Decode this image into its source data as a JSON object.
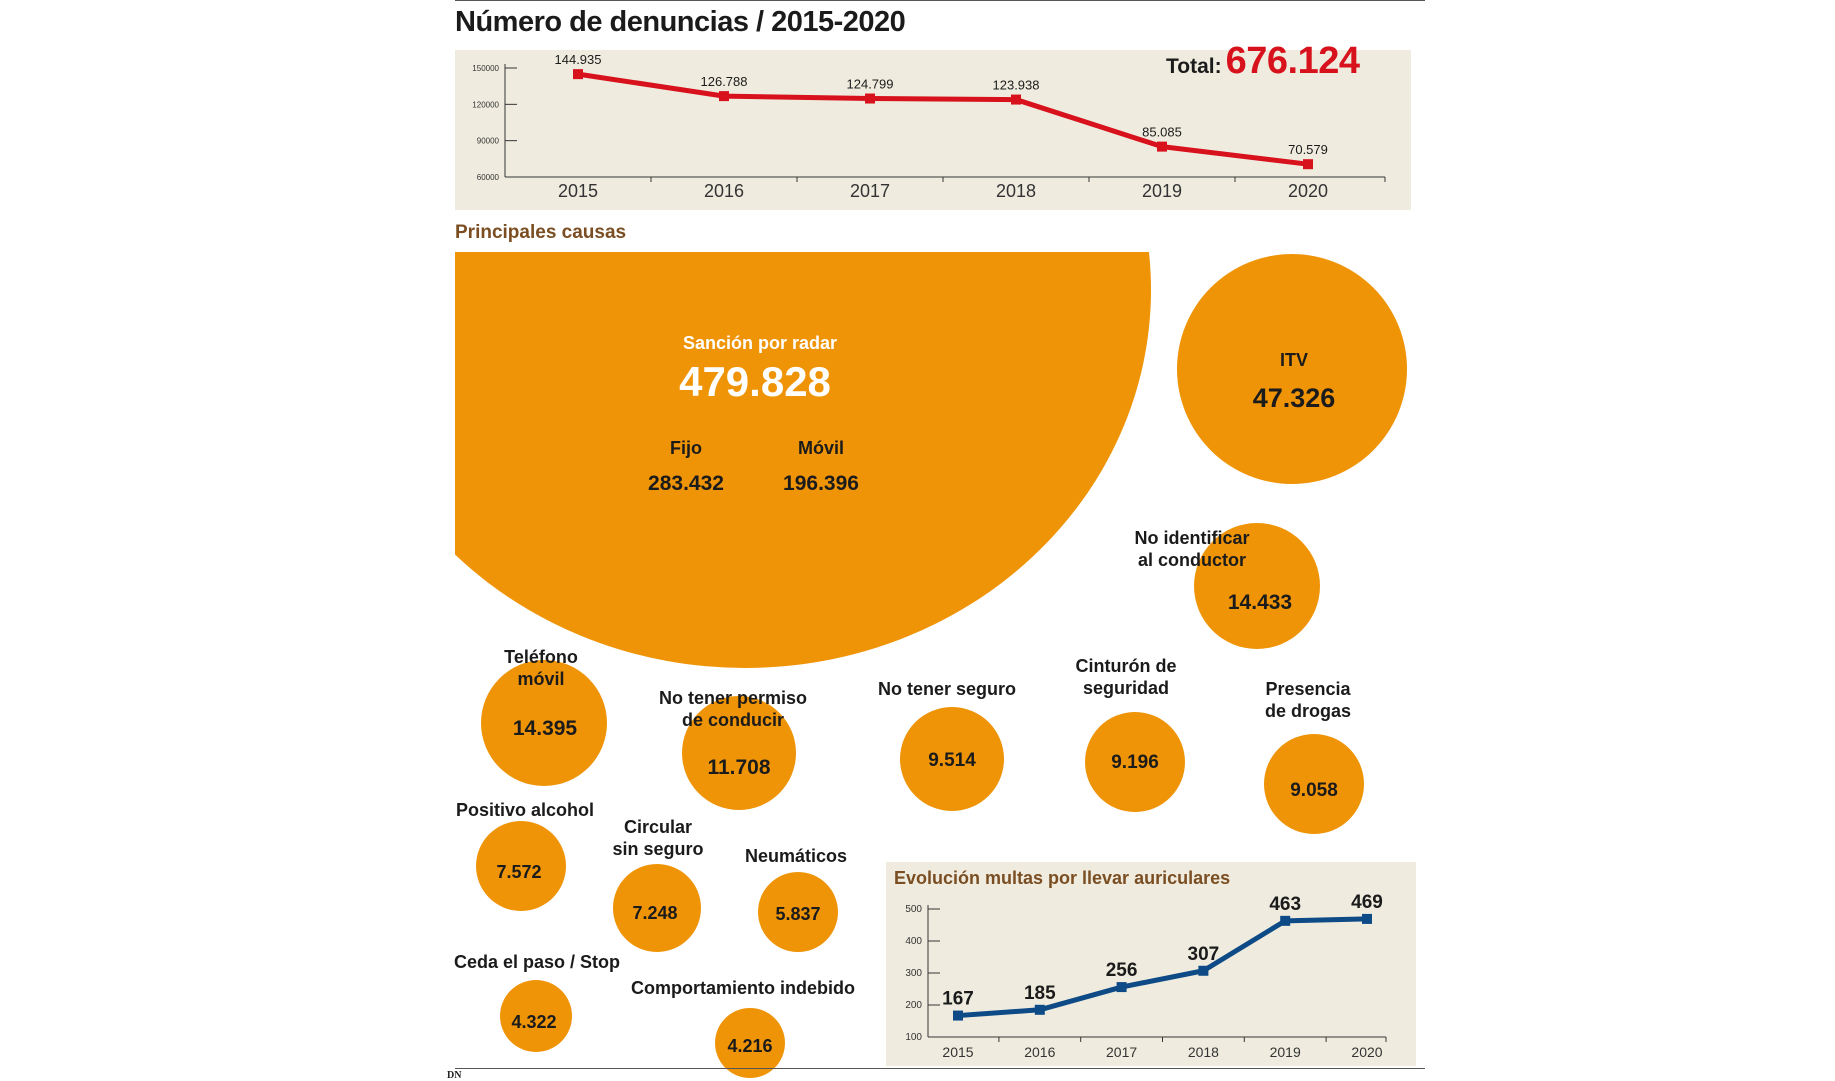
{
  "title": "Número de denuncias  / 2015-2020",
  "total": {
    "label": "Total:",
    "value": "676.124"
  },
  "colors": {
    "line_red": "#d8121c",
    "bubble_orange": "#ef9407",
    "line_blue": "#0d4a86",
    "panel_bg": "#efecdf",
    "section_brown": "#7a4e22"
  },
  "section_title": "Principales causas",
  "radar": {
    "label": "Sanción por radar",
    "value": "479.828",
    "fijo_label": "Fijo",
    "fijo_value": "283.432",
    "movil_label": "Móvil",
    "movil_value": "196.396"
  },
  "bubbles": {
    "itv": {
      "label": "ITV",
      "value": "47.326"
    },
    "no_identificar": {
      "label1": "No identificar",
      "label2": "al conductor",
      "value": "14.433"
    },
    "telefono": {
      "label1": "Teléfono",
      "label2": "móvil",
      "value": "14.395"
    },
    "no_permiso": {
      "label1": "No tener permiso",
      "label2": "de conducir",
      "value": "11.708"
    },
    "no_seguro": {
      "label": "No tener seguro",
      "value": "9.514"
    },
    "cinturon": {
      "label1": "Cinturón de",
      "label2": "seguridad",
      "value": "9.196"
    },
    "drogas": {
      "label1": "Presencia",
      "label2": "de drogas",
      "value": "9.058"
    },
    "alcohol": {
      "label": "Positivo alcohol",
      "value": "7.572"
    },
    "circular": {
      "label1": "Circular",
      "label2": "sin seguro",
      "value": "7.248"
    },
    "neumaticos": {
      "label": "Neumáticos",
      "value": "5.837"
    },
    "ceda": {
      "label": "Ceda el paso / Stop",
      "value": "4.322"
    },
    "comportamiento": {
      "label": "Comportamiento indebido",
      "value": "4.216"
    }
  },
  "logo": "DN",
  "chart_data": [
    {
      "type": "line",
      "title": "Número de denuncias  / 2015-2020",
      "x": [
        "2015",
        "2016",
        "2017",
        "2018",
        "2019",
        "2020"
      ],
      "series": [
        {
          "values": [
            144935,
            126788,
            124799,
            123938,
            85085,
            70579
          ]
        }
      ],
      "data_labels": [
        "144.935",
        "126.788",
        "124.799",
        "123.938",
        "85.085",
        "70.579"
      ],
      "y_ticks": [
        "60000",
        "90000",
        "120000",
        "150000"
      ],
      "ylim": [
        60000,
        150000
      ],
      "color": "#d8121c",
      "grid": false
    },
    {
      "type": "line",
      "title": "Evolución multas por llevar auriculares",
      "x": [
        "2015",
        "2016",
        "2017",
        "2018",
        "2019",
        "2020"
      ],
      "series": [
        {
          "values": [
            167,
            185,
            256,
            307,
            463,
            469
          ]
        }
      ],
      "data_labels": [
        "167",
        "185",
        "256",
        "307",
        "463",
        "469"
      ],
      "y_ticks": [
        "100",
        "200",
        "300",
        "400",
        "500"
      ],
      "ylim": [
        100,
        500
      ],
      "color": "#0d4a86",
      "grid": false
    }
  ]
}
